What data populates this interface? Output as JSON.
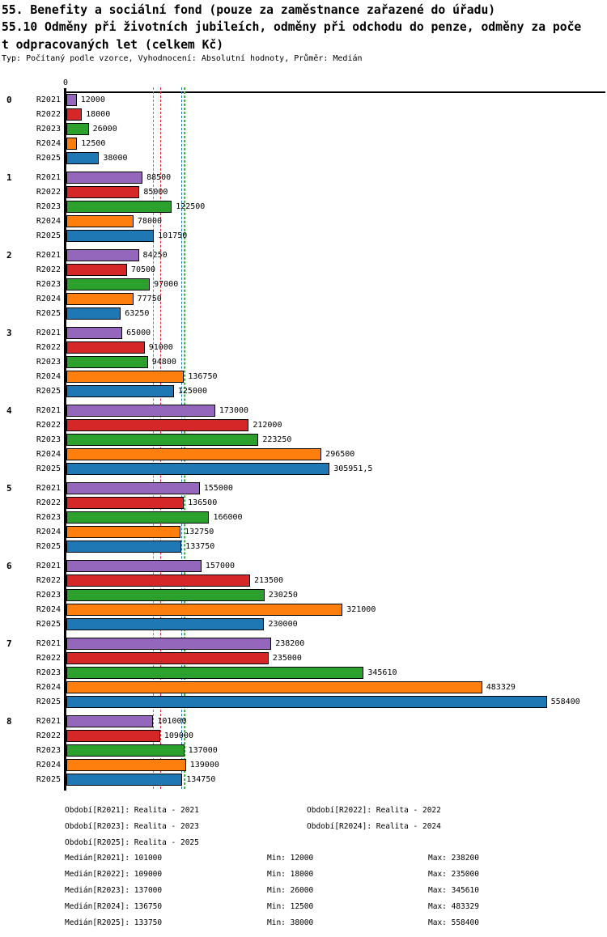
{
  "header": {
    "title_lines": [
      "55. Benefity a sociální fond (pouze za zaměstnance zařazené do úřadu)",
      "55.10 Odměny při životních jubileích, odměny při odchodu do penze, odměny za poče",
      "t odpracovaných let (celkem Kč)"
    ],
    "subtitle": "Typ: Počítaný podle vzorce, Vyhodnocení: Absolutní hodnoty, Průměr: Medián"
  },
  "chart_data": {
    "type": "bar",
    "orientation": "horizontal",
    "title": "55. Benefity a sociální fond (pouze za zaměstnance zařazené do úřadu) 55.10 Odměny při životních jubileích, odměny při odchodu do penze, odměny za počet odpracovaných let (celkem Kč)",
    "subtitle": "Typ: Počítaný podle vzorce, Vyhodnocení: Absolutní hodnoty, Průměr: Medián",
    "axis_zero_label": "0",
    "xlim": [
      0,
      620000
    ],
    "grid": false,
    "legend_position": "bottom",
    "series": [
      {
        "id": "R2021",
        "label": "R2021",
        "color": "#9467bd",
        "median": 101000,
        "min": 12000,
        "max": 238200
      },
      {
        "id": "R2022",
        "label": "R2022",
        "color": "#d62728",
        "median": 109000,
        "min": 18000,
        "max": 235000
      },
      {
        "id": "R2023",
        "label": "R2023",
        "color": "#2ca02c",
        "median": 137000,
        "min": 26000,
        "max": 345610
      },
      {
        "id": "R2024",
        "label": "R2024",
        "color": "#ff7f0e",
        "median": 136750,
        "min": 12500,
        "max": 483329
      },
      {
        "id": "R2025",
        "label": "R2025",
        "color": "#1f77b4",
        "median": 133750,
        "min": 38000,
        "max": 558400
      }
    ],
    "groups": [
      {
        "label": "0",
        "values": [
          12000,
          18000,
          26000,
          12500,
          38000
        ],
        "value_labels": [
          "12000",
          "18000",
          "26000",
          "12500",
          "38000"
        ]
      },
      {
        "label": "1",
        "values": [
          88500,
          85000,
          122500,
          78000,
          101750
        ],
        "value_labels": [
          "88500",
          "85000",
          "122500",
          "78000",
          "101750"
        ]
      },
      {
        "label": "2",
        "values": [
          84250,
          70500,
          97000,
          77750,
          63250
        ],
        "value_labels": [
          "84250",
          "70500",
          "97000",
          "77750",
          "63250"
        ]
      },
      {
        "label": "3",
        "values": [
          65000,
          91000,
          94800,
          136750,
          125000
        ],
        "value_labels": [
          "65000",
          "91000",
          "94800",
          "136750",
          "125000"
        ]
      },
      {
        "label": "4",
        "values": [
          173000,
          212000,
          223250,
          296500,
          305951.5
        ],
        "value_labels": [
          "173000",
          "212000",
          "223250",
          "296500",
          "305951,5"
        ]
      },
      {
        "label": "5",
        "values": [
          155000,
          136500,
          166000,
          132750,
          133750
        ],
        "value_labels": [
          "155000",
          "136500",
          "166000",
          "132750",
          "133750"
        ]
      },
      {
        "label": "6",
        "values": [
          157000,
          213500,
          230250,
          321000,
          230000
        ],
        "value_labels": [
          "157000",
          "213500",
          "230250",
          "321000",
          "230000"
        ]
      },
      {
        "label": "7",
        "values": [
          238200,
          235000,
          345610,
          483329,
          558400
        ],
        "value_labels": [
          "238200",
          "235000",
          "345610",
          "483329",
          "558400"
        ]
      },
      {
        "label": "8",
        "values": [
          101000,
          109000,
          137000,
          139000,
          134750
        ],
        "value_labels": [
          "101000",
          "109000",
          "137000",
          "139000",
          "134750"
        ]
      }
    ]
  },
  "legend": {
    "periods": [
      "Období[R2021]: Realita - 2021",
      "Období[R2022]: Realita - 2022",
      "Období[R2023]: Realita - 2023",
      "Období[R2024]: Realita - 2024",
      "Období[R2025]: Realita - 2025"
    ],
    "stats": [
      {
        "median": "Medián[R2021]: 101000",
        "min": "Min: 12000",
        "max": "Max: 238200"
      },
      {
        "median": "Medián[R2022]: 109000",
        "min": "Min: 18000",
        "max": "Max: 235000"
      },
      {
        "median": "Medián[R2023]: 137000",
        "min": "Min: 26000",
        "max": "Max: 345610"
      },
      {
        "median": "Medián[R2024]: 136750",
        "min": "Min: 12500",
        "max": "Max: 483329"
      },
      {
        "median": "Medián[R2025]: 133750",
        "min": "Min: 38000",
        "max": "Max: 558400"
      }
    ]
  }
}
